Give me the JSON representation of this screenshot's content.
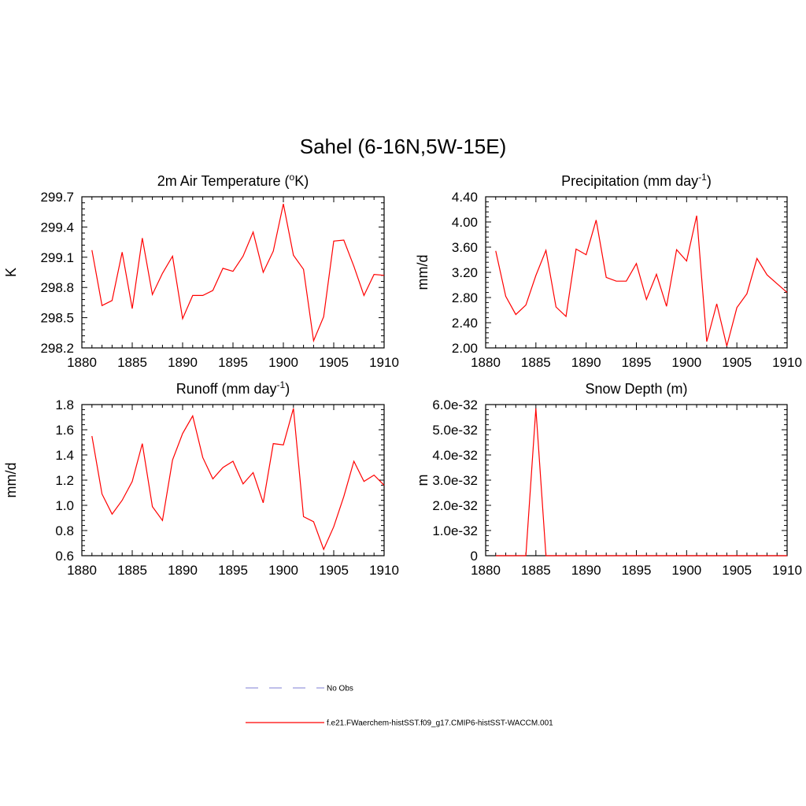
{
  "figure": {
    "title": "Sahel (6-16N,5W-15E)"
  },
  "colors": {
    "model_line": "#ff0000",
    "obs_line": "#9999dd",
    "axis": "#000000"
  },
  "legend": {
    "placement": "bottom-center",
    "items": [
      {
        "label": "No Obs",
        "style": "dashed",
        "color": "#9999dd"
      },
      {
        "label": "f.e21.FWaerchem-histSST.f09_g17.CMIP6-histSST-WACCM.001",
        "style": "solid",
        "color": "#ff0000"
      }
    ]
  },
  "chart_data": [
    {
      "type": "line",
      "title": "2m Air Temperature (oK)",
      "title_parts": {
        "base": "2m Air Temperature (",
        "sup": "o",
        "tail": "K)"
      },
      "xlabel": "",
      "ylabel": "K",
      "xlim": [
        1880,
        1910
      ],
      "ylim": [
        298.2,
        299.7
      ],
      "x_ticks": [
        1880,
        1885,
        1890,
        1895,
        1900,
        1905,
        1910
      ],
      "y_ticks": [
        "298.2",
        "298.5",
        "298.8",
        "299.1",
        "299.4",
        "299.7"
      ],
      "series": [
        {
          "x": [
            1881,
            1882,
            1883,
            1884,
            1885,
            1886,
            1887,
            1888,
            1889,
            1890,
            1891,
            1892,
            1893,
            1894,
            1895,
            1896,
            1897,
            1898,
            1899,
            1900,
            1901,
            1902,
            1903,
            1904,
            1905,
            1906,
            1907,
            1908,
            1909,
            1910
          ],
          "values": [
            299.17,
            298.62,
            298.67,
            299.15,
            298.59,
            299.29,
            298.73,
            298.94,
            299.11,
            298.49,
            298.72,
            298.72,
            298.77,
            298.99,
            298.96,
            299.11,
            299.35,
            298.95,
            299.16,
            299.63,
            299.12,
            298.98,
            298.27,
            298.51,
            299.26,
            299.27,
            299.01,
            298.72,
            298.93,
            298.92
          ]
        }
      ]
    },
    {
      "type": "line",
      "title": "Precipitation (mm day-1)",
      "title_parts": {
        "base": "Precipitation (mm day",
        "sup": "-1",
        "tail": ")"
      },
      "xlabel": "",
      "ylabel": "mm/d",
      "xlim": [
        1880,
        1910
      ],
      "ylim": [
        2.0,
        4.4
      ],
      "x_ticks": [
        1880,
        1885,
        1890,
        1895,
        1900,
        1905,
        1910
      ],
      "y_ticks": [
        "2.00",
        "2.40",
        "2.80",
        "3.20",
        "3.60",
        "4.00",
        "4.40"
      ],
      "series": [
        {
          "x": [
            1881,
            1882,
            1883,
            1884,
            1885,
            1886,
            1887,
            1888,
            1889,
            1890,
            1891,
            1892,
            1893,
            1894,
            1895,
            1896,
            1897,
            1898,
            1899,
            1900,
            1901,
            1902,
            1903,
            1904,
            1905,
            1906,
            1907,
            1908,
            1909,
            1910
          ],
          "values": [
            3.54,
            2.82,
            2.53,
            2.68,
            3.15,
            3.55,
            2.65,
            2.5,
            3.57,
            3.48,
            4.03,
            3.12,
            3.06,
            3.06,
            3.34,
            2.77,
            3.17,
            2.66,
            3.56,
            3.38,
            4.1,
            2.1,
            2.7,
            2.03,
            2.64,
            2.86,
            3.42,
            3.16,
            3.02,
            2.88
          ]
        }
      ]
    },
    {
      "type": "line",
      "title": "Runoff (mm day-1)",
      "title_parts": {
        "base": "Runoff (mm day",
        "sup": "-1",
        "tail": ")"
      },
      "xlabel": "",
      "ylabel": "mm/d",
      "xlim": [
        1880,
        1910
      ],
      "ylim": [
        0.6,
        1.8
      ],
      "x_ticks": [
        1880,
        1885,
        1890,
        1895,
        1900,
        1905,
        1910
      ],
      "y_ticks": [
        "0.6",
        "0.8",
        "1.0",
        "1.2",
        "1.4",
        "1.6",
        "1.8"
      ],
      "series": [
        {
          "x": [
            1881,
            1882,
            1883,
            1884,
            1885,
            1886,
            1887,
            1888,
            1889,
            1890,
            1891,
            1892,
            1893,
            1894,
            1895,
            1896,
            1897,
            1898,
            1899,
            1900,
            1901,
            1902,
            1903,
            1904,
            1905,
            1906,
            1907,
            1908,
            1909,
            1910
          ],
          "values": [
            1.55,
            1.09,
            0.93,
            1.04,
            1.19,
            1.49,
            0.99,
            0.88,
            1.36,
            1.57,
            1.71,
            1.38,
            1.21,
            1.3,
            1.35,
            1.17,
            1.26,
            1.02,
            1.49,
            1.48,
            1.77,
            0.91,
            0.87,
            0.65,
            0.83,
            1.07,
            1.35,
            1.19,
            1.24,
            1.16
          ]
        }
      ]
    },
    {
      "type": "line",
      "title": "Snow Depth (m)",
      "title_parts": {
        "base": "Snow Depth (m)",
        "sup": "",
        "tail": ""
      },
      "xlabel": "",
      "ylabel": "m",
      "xlim": [
        1880,
        1910
      ],
      "ylim": [
        0,
        6e-32
      ],
      "x_ticks": [
        1880,
        1885,
        1890,
        1895,
        1900,
        1905,
        1910
      ],
      "y_ticks": [
        "0",
        "1.0e-32",
        "2.0e-32",
        "3.0e-32",
        "4.0e-32",
        "5.0e-32",
        "6.0e-32"
      ],
      "series": [
        {
          "x": [
            1881,
            1882,
            1883,
            1884,
            1885,
            1886,
            1887,
            1888,
            1889,
            1890,
            1891,
            1892,
            1893,
            1894,
            1895,
            1896,
            1897,
            1898,
            1899,
            1900,
            1901,
            1902,
            1903,
            1904,
            1905,
            1906,
            1907,
            1908,
            1909,
            1910
          ],
          "values": [
            0,
            0,
            0,
            0,
            5.85e-32,
            0,
            0,
            0,
            0,
            0,
            0,
            0,
            0,
            0,
            0,
            0,
            0,
            0,
            0,
            0,
            0,
            0,
            0,
            0,
            0,
            0,
            0,
            0,
            0,
            0
          ]
        }
      ]
    }
  ]
}
